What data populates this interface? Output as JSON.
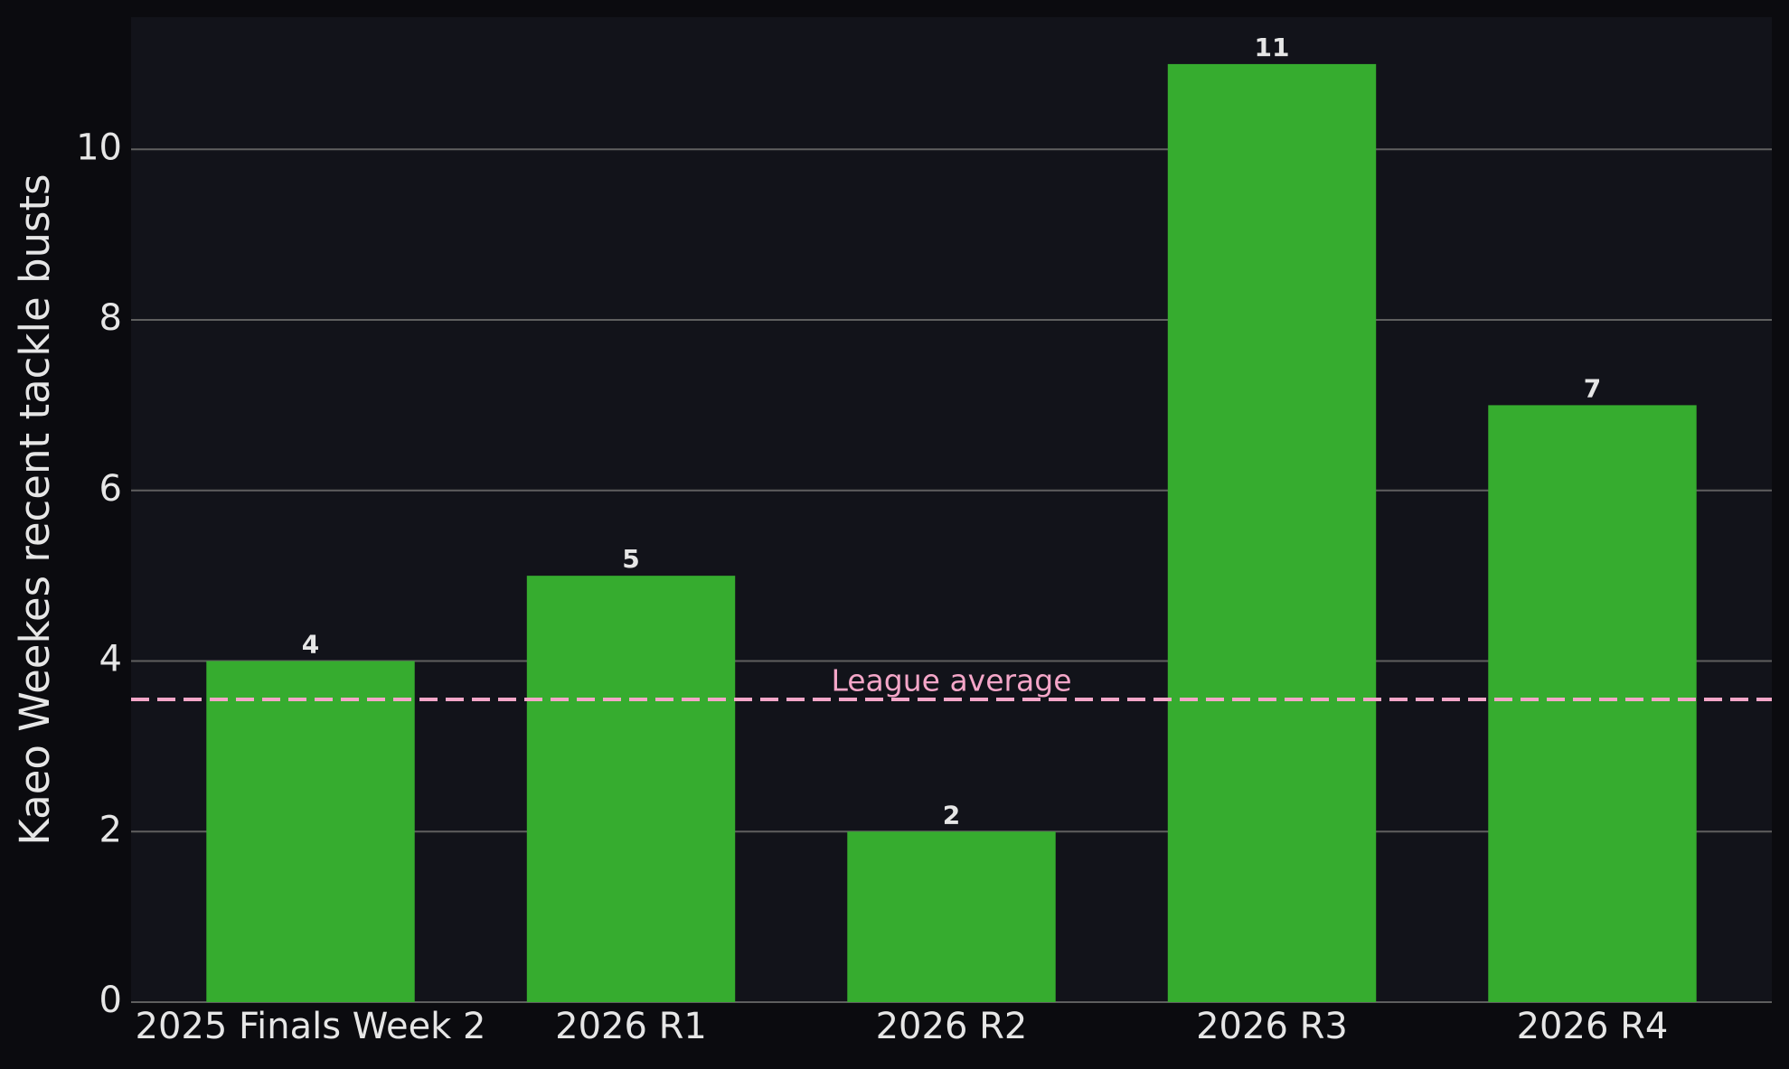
{
  "chart_data": {
    "type": "bar",
    "y_label": "Kaeo Weekes recent tackle busts",
    "categories": [
      "2025 Finals Week 2",
      "2026 R1",
      "2026 R2",
      "2026 R3",
      "2026 R4"
    ],
    "values": [
      4,
      5,
      2,
      11,
      7
    ],
    "color": "#36ac2f",
    "ylim": [
      0,
      11.55
    ],
    "yticks": [
      0,
      2,
      4,
      6,
      8,
      10
    ],
    "grid": true,
    "reference_line": {
      "value": 3.55,
      "label": "League average",
      "color": "#f4a6c8"
    }
  }
}
